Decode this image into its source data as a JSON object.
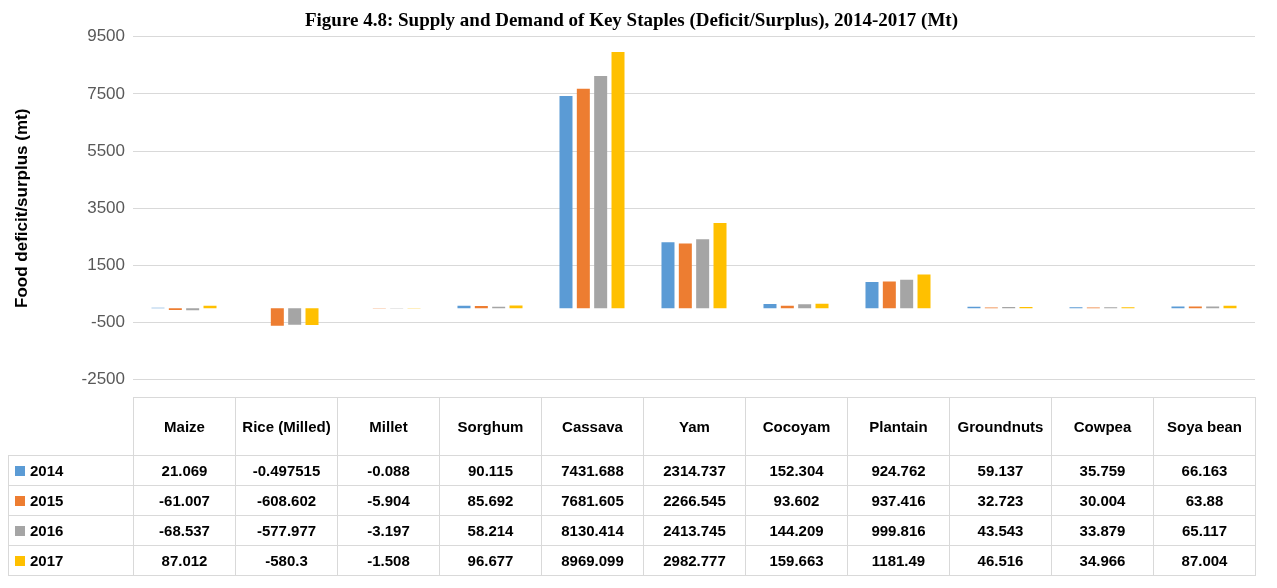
{
  "chart_data": {
    "type": "bar",
    "title": "Figure 4.8: Supply and Demand of Key Staples (Deficit/Surplus), 2014-2017 (Mt)",
    "ylabel": "Food deficit/surplus (mt)",
    "categories": [
      "Maize",
      "Rice (Milled)",
      "Millet",
      "Sorghum",
      "Cassava",
      "Yam",
      "Cocoyam",
      "Plantain",
      "Groundnuts",
      "Cowpea",
      "Soya bean"
    ],
    "series": [
      {
        "name": "2014",
        "color": "#5b9bd5",
        "values": [
          21.069,
          -0.497515,
          -0.088,
          90.115,
          7431.688,
          2314.737,
          152.304,
          924.762,
          59.137,
          35.759,
          66.163
        ]
      },
      {
        "name": "2015",
        "color": "#ed7d31",
        "values": [
          -61.007,
          -608.602,
          -5.904,
          85.692,
          7681.605,
          2266.545,
          93.602,
          937.416,
          32.723,
          30.004,
          63.88
        ]
      },
      {
        "name": "2016",
        "color": "#a5a5a5",
        "values": [
          -68.537,
          -577.977,
          -3.197,
          58.214,
          8130.414,
          2413.745,
          144.209,
          999.816,
          43.543,
          33.879,
          65.117
        ]
      },
      {
        "name": "2017",
        "color": "#ffc000",
        "values": [
          87.012,
          -580.3,
          -1.508,
          96.677,
          8969.099,
          2982.777,
          159.663,
          1181.49,
          46.516,
          34.966,
          87.004
        ]
      }
    ],
    "ylim": [
      -2500,
      9500
    ],
    "yticks": [
      -2500,
      -500,
      1500,
      3500,
      5500,
      7500,
      9500
    ],
    "grid": "y",
    "legend": "bottom",
    "data_labels": true,
    "tick_labels": "y"
  }
}
